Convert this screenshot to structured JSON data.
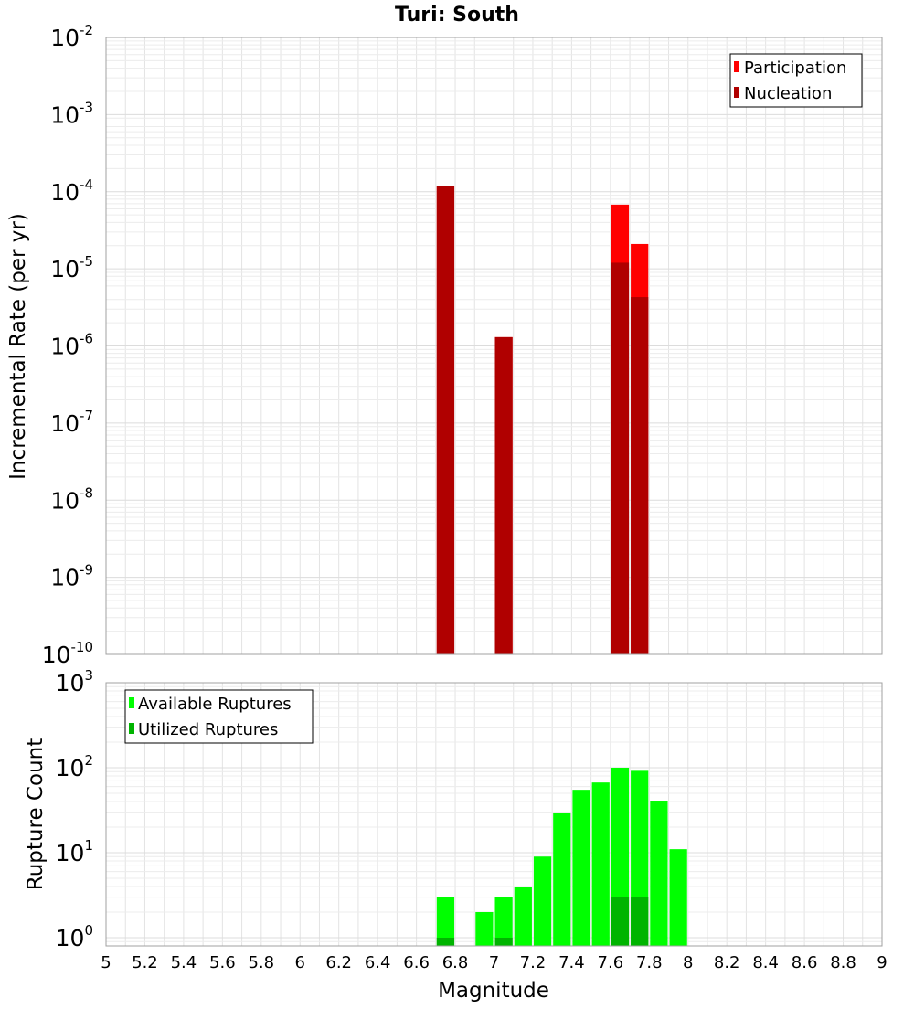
{
  "chart_data": [
    {
      "type": "bar",
      "title": "Turi: South",
      "xlabel": "",
      "ylabel": "Incremental Rate (per yr)",
      "yscale": "log",
      "xlim": [
        5,
        9
      ],
      "ylim": [
        1e-10,
        0.01
      ],
      "bar_width": 0.1,
      "grid": true,
      "legend_position": "top-right",
      "ytick_labels": [
        {
          "base": "10",
          "exp": "-10",
          "value": 1e-10
        },
        {
          "base": "10",
          "exp": "-9",
          "value": 1e-09
        },
        {
          "base": "10",
          "exp": "-8",
          "value": 1e-08
        },
        {
          "base": "10",
          "exp": "-7",
          "value": 1e-07
        },
        {
          "base": "10",
          "exp": "-6",
          "value": 1e-06
        },
        {
          "base": "10",
          "exp": "-5",
          "value": 1e-05
        },
        {
          "base": "10",
          "exp": "-4",
          "value": 0.0001
        },
        {
          "base": "10",
          "exp": "-3",
          "value": 0.001
        },
        {
          "base": "10",
          "exp": "-2",
          "value": 0.01
        }
      ],
      "series": [
        {
          "name": "Participation",
          "color": "#ff0000",
          "points": [
            {
              "x": 6.75,
              "y": 0.00012
            },
            {
              "x": 7.05,
              "y": 1.3e-06
            },
            {
              "x": 7.65,
              "y": 6.8e-05
            },
            {
              "x": 7.75,
              "y": 2.1e-05
            }
          ]
        },
        {
          "name": "Nucleation",
          "color": "#b00000",
          "points": [
            {
              "x": 6.75,
              "y": 0.00012
            },
            {
              "x": 7.05,
              "y": 1.3e-06
            },
            {
              "x": 7.65,
              "y": 1.2e-05
            },
            {
              "x": 7.75,
              "y": 4.3e-06
            }
          ]
        }
      ]
    },
    {
      "type": "bar",
      "title": "",
      "xlabel": "Magnitude",
      "ylabel": "Rupture Count",
      "yscale": "log",
      "xlim": [
        5,
        9
      ],
      "ylim": [
        0.8,
        1000
      ],
      "bar_width": 0.1,
      "grid": true,
      "legend_position": "top-left",
      "xtick_labels": [
        "5",
        "5.2",
        "5.4",
        "5.6",
        "5.8",
        "6",
        "6.2",
        "6.4",
        "6.6",
        "6.8",
        "7",
        "7.2",
        "7.4",
        "7.6",
        "7.8",
        "8",
        "8.2",
        "8.4",
        "8.6",
        "8.8",
        "9"
      ],
      "ytick_labels": [
        {
          "base": "10",
          "exp": "0",
          "value": 1
        },
        {
          "base": "10",
          "exp": "1",
          "value": 10
        },
        {
          "base": "10",
          "exp": "2",
          "value": 100
        },
        {
          "base": "10",
          "exp": "3",
          "value": 1000
        }
      ],
      "series": [
        {
          "name": "Available Ruptures",
          "color": "#00ff00",
          "points": [
            {
              "x": 6.75,
              "y": 3
            },
            {
              "x": 6.95,
              "y": 2
            },
            {
              "x": 7.05,
              "y": 3
            },
            {
              "x": 7.15,
              "y": 4
            },
            {
              "x": 7.25,
              "y": 9
            },
            {
              "x": 7.35,
              "y": 29
            },
            {
              "x": 7.45,
              "y": 55
            },
            {
              "x": 7.55,
              "y": 67
            },
            {
              "x": 7.65,
              "y": 100
            },
            {
              "x": 7.75,
              "y": 92
            },
            {
              "x": 7.85,
              "y": 41
            },
            {
              "x": 7.95,
              "y": 11
            }
          ]
        },
        {
          "name": "Utilized Ruptures",
          "color": "#00b400",
          "points": [
            {
              "x": 6.75,
              "y": 1
            },
            {
              "x": 7.05,
              "y": 1
            },
            {
              "x": 7.65,
              "y": 3
            },
            {
              "x": 7.75,
              "y": 3
            }
          ]
        }
      ]
    }
  ]
}
